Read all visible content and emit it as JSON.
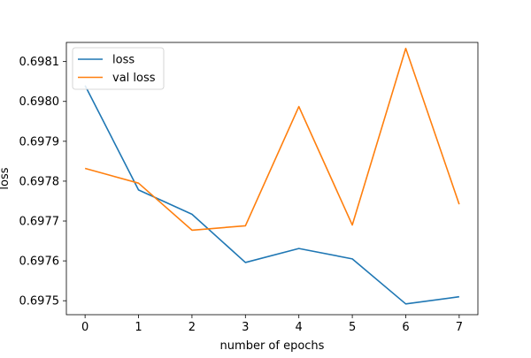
{
  "chart_data": {
    "type": "line",
    "title": "",
    "xlabel": "number of epochs",
    "ylabel": "loss",
    "x": [
      0,
      1,
      2,
      3,
      4,
      5,
      6,
      7
    ],
    "xlim": [
      -0.35,
      7.35
    ],
    "ylim": [
      0.697465,
      0.698148
    ],
    "xticks": [
      0,
      1,
      2,
      3,
      4,
      5,
      6,
      7
    ],
    "xtick_labels": [
      "0",
      "1",
      "2",
      "3",
      "4",
      "5",
      "6",
      "7"
    ],
    "yticks": [
      0.6975,
      0.6976,
      0.6977,
      0.6978,
      0.6979,
      0.698,
      0.6981
    ],
    "ytick_labels": [
      "0.6975",
      "0.6976",
      "0.6977",
      "0.6978",
      "0.6979",
      "0.6980",
      "0.6981"
    ],
    "grid": false,
    "legend_position": "top-left",
    "series": [
      {
        "name": "loss",
        "color": "#1f77b4",
        "values": [
          0.69804,
          0.697778,
          0.697717,
          0.697596,
          0.697631,
          0.697605,
          0.697492,
          0.69751
        ]
      },
      {
        "name": "val loss",
        "color": "#ff7f0e",
        "values": [
          0.697832,
          0.697795,
          0.697677,
          0.697688,
          0.697987,
          0.69769,
          0.698133,
          0.697742
        ]
      }
    ]
  }
}
